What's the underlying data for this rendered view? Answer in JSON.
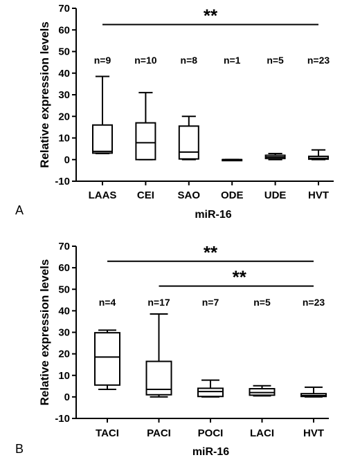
{
  "chart_data": [
    {
      "type": "box",
      "panel_label": "A",
      "ylabel": "Relative expression levels",
      "xlabel": "miR-16",
      "ylim": [
        -10,
        70
      ],
      "yticks": [
        -10,
        0,
        10,
        20,
        30,
        40,
        50,
        60,
        70
      ],
      "categories": [
        "LAAS",
        "CEI",
        "SAO",
        "ODE",
        "UDE",
        "HVT"
      ],
      "n_labels": [
        "n=9",
        "n=10",
        "n=8",
        "n=1",
        "n=5",
        "n=23"
      ],
      "boxes": [
        {
          "min": 2.8,
          "q1": 3.0,
          "median": 3.8,
          "q3": 16.0,
          "max": 38.5
        },
        {
          "min": 0.0,
          "q1": 0.0,
          "median": 7.8,
          "q3": 17.0,
          "max": 31.0
        },
        {
          "min": 0.0,
          "q1": 0.3,
          "median": 3.5,
          "q3": 15.5,
          "max": 20.0
        },
        {
          "min": 0.0,
          "q1": 0.0,
          "median": 0.0,
          "q3": 0.0,
          "max": 0.0
        },
        {
          "min": 0.0,
          "q1": 0.5,
          "median": 1.2,
          "q3": 2.0,
          "max": 2.8
        },
        {
          "min": 0.0,
          "q1": 0.2,
          "median": 0.6,
          "q3": 1.5,
          "max": 4.5
        }
      ],
      "significance": [
        {
          "from": "LAAS",
          "to": "HVT",
          "label": "**",
          "y": 62.5,
          "label_at": "center"
        }
      ]
    },
    {
      "type": "box",
      "panel_label": "B",
      "ylabel": "Relative expression levels",
      "xlabel": "miR-16",
      "ylim": [
        -10,
        70
      ],
      "yticks": [
        -10,
        0,
        10,
        20,
        30,
        40,
        50,
        60,
        70
      ],
      "categories": [
        "TACI",
        "PACI",
        "POCI",
        "LACI",
        "HVT"
      ],
      "n_labels": [
        "n=4",
        "n=17",
        "n=7",
        "n=5",
        "n=23"
      ],
      "boxes": [
        {
          "min": 3.5,
          "q1": 5.5,
          "median": 18.5,
          "q3": 29.8,
          "max": 31.0
        },
        {
          "min": 0.0,
          "q1": 1.0,
          "median": 3.5,
          "q3": 16.5,
          "max": 38.5
        },
        {
          "min": 0.0,
          "q1": 0.2,
          "median": 2.5,
          "q3": 4.0,
          "max": 7.8
        },
        {
          "min": 0.5,
          "q1": 0.8,
          "median": 2.0,
          "q3": 3.8,
          "max": 5.2
        },
        {
          "min": 0.0,
          "q1": 0.2,
          "median": 0.6,
          "q3": 1.5,
          "max": 4.5
        }
      ],
      "significance": [
        {
          "from": "TACI",
          "to": "HVT",
          "label": "**",
          "y": 63.0,
          "label_at": "center"
        },
        {
          "from": "PACI",
          "to": "HVT",
          "label": "**",
          "y": 51.5,
          "label_at": "right"
        }
      ]
    }
  ]
}
